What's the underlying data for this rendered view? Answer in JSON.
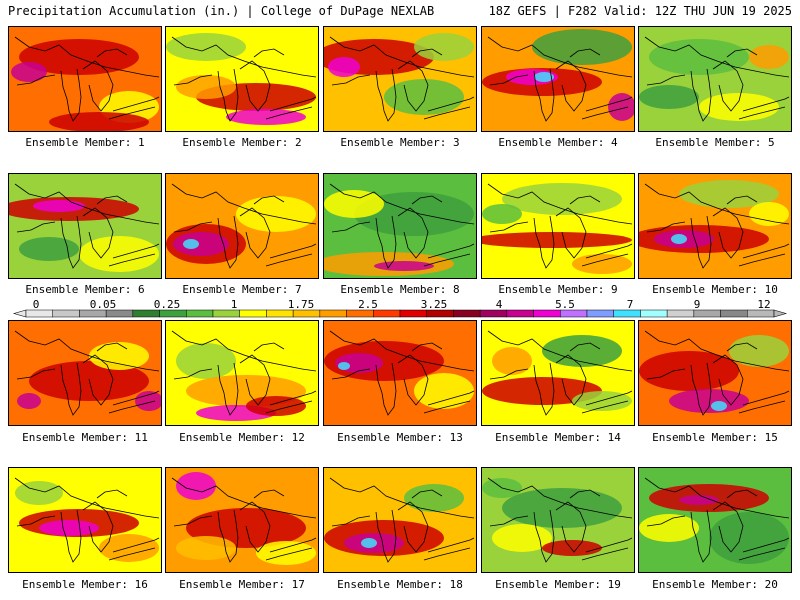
{
  "header": {
    "left": "Precipitation Accumulation (in.) | College of DuPage NEXLAB",
    "right": "18Z GEFS | F282 Valid: 12Z THU JUN 19 2025"
  },
  "legend": {
    "tick_labels": [
      "0",
      "0.05",
      "0.25",
      "1",
      "1.75",
      "2.5",
      "3.25",
      "4",
      "5.5",
      "7",
      "9",
      "12"
    ],
    "colors": [
      "#e8e8e8",
      "#c8c8c8",
      "#a8a8a8",
      "#8a8a8a",
      "#2f7f2f",
      "#3ea03e",
      "#5cbe3e",
      "#9ad23c",
      "#ffff00",
      "#ffe200",
      "#ffc000",
      "#ff9c00",
      "#ff6e00",
      "#ff3a00",
      "#e00000",
      "#b00000",
      "#8a0020",
      "#a00060",
      "#c80090",
      "#ee00d0",
      "#c070ff",
      "#7f9cff",
      "#40e0ff",
      "#a0ffff",
      "#d0d0d0",
      "#a8a8a8",
      "#888888",
      "#b8b8b8"
    ]
  },
  "panels": [
    {
      "caption": "Ensemble Member: 1",
      "bg": "#ff6e00",
      "blobs": [
        [
          "#cc0000",
          70,
          30,
          60,
          18
        ],
        [
          "#c80090",
          20,
          45,
          18,
          10
        ],
        [
          "#ffff00",
          120,
          80,
          30,
          16
        ],
        [
          "#cc0000",
          90,
          95,
          50,
          10
        ]
      ]
    },
    {
      "caption": "Ensemble Member: 2",
      "bg": "#ffff00",
      "blobs": [
        [
          "#9ad23c",
          40,
          20,
          40,
          14
        ],
        [
          "#cc0000",
          90,
          70,
          60,
          14
        ],
        [
          "#ee00d0",
          100,
          90,
          40,
          8
        ],
        [
          "#ff9c00",
          40,
          60,
          30,
          12
        ]
      ]
    },
    {
      "caption": "Ensemble Member: 3",
      "bg": "#ffc000",
      "blobs": [
        [
          "#cc0000",
          50,
          30,
          60,
          18
        ],
        [
          "#ee00d0",
          20,
          40,
          16,
          10
        ],
        [
          "#5cbe3e",
          100,
          70,
          40,
          18
        ],
        [
          "#9ad23c",
          120,
          20,
          30,
          14
        ]
      ]
    },
    {
      "caption": "Ensemble Member: 4",
      "bg": "#ff9c00",
      "blobs": [
        [
          "#3ea03e",
          100,
          20,
          50,
          18
        ],
        [
          "#cc0000",
          60,
          55,
          60,
          14
        ],
        [
          "#ee00d0",
          50,
          50,
          26,
          8
        ],
        [
          "#40e0ff",
          62,
          50,
          10,
          5
        ],
        [
          "#c80090",
          140,
          80,
          14,
          14
        ]
      ]
    },
    {
      "caption": "Ensemble Member: 5",
      "bg": "#9ad23c",
      "blobs": [
        [
          "#5cbe3e",
          60,
          30,
          50,
          18
        ],
        [
          "#ffff00",
          100,
          80,
          40,
          14
        ],
        [
          "#ff9c00",
          130,
          30,
          20,
          12
        ],
        [
          "#3ea03e",
          30,
          70,
          30,
          12
        ]
      ]
    },
    {
      "caption": "Ensemble Member: 6",
      "bg": "#9ad23c",
      "blobs": [
        [
          "#cc0000",
          60,
          35,
          70,
          12
        ],
        [
          "#ee00d0",
          50,
          32,
          26,
          6
        ],
        [
          "#ffff00",
          110,
          80,
          40,
          18
        ],
        [
          "#3ea03e",
          40,
          75,
          30,
          12
        ]
      ]
    },
    {
      "caption": "Ensemble Member: 7",
      "bg": "#ff9c00",
      "blobs": [
        [
          "#cc0000",
          40,
          70,
          40,
          20
        ],
        [
          "#c80090",
          35,
          70,
          28,
          12
        ],
        [
          "#40e0ff",
          25,
          70,
          8,
          5
        ],
        [
          "#ffff00",
          110,
          40,
          40,
          18
        ]
      ]
    },
    {
      "caption": "Ensemble Member: 8",
      "bg": "#5cbe3e",
      "blobs": [
        [
          "#3ea03e",
          90,
          40,
          60,
          22
        ],
        [
          "#ff9c00",
          60,
          90,
          70,
          12
        ],
        [
          "#ffff00",
          30,
          30,
          30,
          14
        ],
        [
          "#c80090",
          80,
          92,
          30,
          5
        ]
      ]
    },
    {
      "caption": "Ensemble Member: 9",
      "bg": "#ffff00",
      "blobs": [
        [
          "#9ad23c",
          80,
          25,
          60,
          16
        ],
        [
          "#cc0000",
          70,
          66,
          80,
          8
        ],
        [
          "#ff9c00",
          120,
          90,
          30,
          10
        ],
        [
          "#5cbe3e",
          20,
          40,
          20,
          10
        ]
      ]
    },
    {
      "caption": "Ensemble Member: 10",
      "bg": "#ff9c00",
      "blobs": [
        [
          "#cc0000",
          60,
          65,
          70,
          14
        ],
        [
          "#c80090",
          45,
          65,
          30,
          9
        ],
        [
          "#40e0ff",
          40,
          65,
          8,
          5
        ],
        [
          "#9ad23c",
          90,
          20,
          50,
          14
        ],
        [
          "#ffff00",
          130,
          40,
          20,
          12
        ]
      ]
    },
    {
      "caption": "Ensemble Member: 11",
      "bg": "#ff6e00",
      "blobs": [
        [
          "#cc0000",
          80,
          60,
          60,
          20
        ],
        [
          "#ffff00",
          110,
          35,
          30,
          14
        ],
        [
          "#c80090",
          140,
          80,
          14,
          10
        ],
        [
          "#c80090",
          20,
          80,
          12,
          8
        ]
      ]
    },
    {
      "caption": "Ensemble Member: 12",
      "bg": "#ffff00",
      "blobs": [
        [
          "#9ad23c",
          40,
          40,
          30,
          18
        ],
        [
          "#ff9c00",
          80,
          70,
          60,
          16
        ],
        [
          "#ee00d0",
          70,
          92,
          40,
          8
        ],
        [
          "#cc0000",
          110,
          85,
          30,
          10
        ]
      ]
    },
    {
      "caption": "Ensemble Member: 13",
      "bg": "#ff6e00",
      "blobs": [
        [
          "#cc0000",
          60,
          40,
          60,
          20
        ],
        [
          "#c80090",
          35,
          42,
          24,
          10
        ],
        [
          "#40e0ff",
          20,
          45,
          6,
          4
        ],
        [
          "#ffff00",
          120,
          70,
          30,
          18
        ]
      ]
    },
    {
      "caption": "Ensemble Member: 14",
      "bg": "#ffff00",
      "blobs": [
        [
          "#3ea03e",
          100,
          30,
          40,
          16
        ],
        [
          "#cc0000",
          60,
          70,
          60,
          14
        ],
        [
          "#ff9c00",
          30,
          40,
          20,
          14
        ],
        [
          "#9ad23c",
          120,
          80,
          30,
          10
        ]
      ]
    },
    {
      "caption": "Ensemble Member: 15",
      "bg": "#ff6e00",
      "blobs": [
        [
          "#cc0000",
          50,
          50,
          50,
          20
        ],
        [
          "#c80090",
          70,
          80,
          40,
          12
        ],
        [
          "#40e0ff",
          80,
          85,
          8,
          5
        ],
        [
          "#9ad23c",
          120,
          30,
          30,
          16
        ]
      ]
    },
    {
      "caption": "Ensemble Member: 16",
      "bg": "#ffff00",
      "blobs": [
        [
          "#cc0000",
          70,
          55,
          60,
          14
        ],
        [
          "#ee00d0",
          60,
          60,
          30,
          8
        ],
        [
          "#9ad23c",
          30,
          25,
          24,
          12
        ],
        [
          "#ff9c00",
          120,
          80,
          30,
          14
        ]
      ]
    },
    {
      "caption": "Ensemble Member: 17",
      "bg": "#ff9c00",
      "blobs": [
        [
          "#ee00d0",
          30,
          18,
          20,
          14
        ],
        [
          "#cc0000",
          80,
          60,
          60,
          20
        ],
        [
          "#ffff00",
          120,
          85,
          30,
          12
        ],
        [
          "#ffc000",
          40,
          80,
          30,
          12
        ]
      ]
    },
    {
      "caption": "Ensemble Member: 18",
      "bg": "#ffc000",
      "blobs": [
        [
          "#cc0000",
          60,
          70,
          60,
          18
        ],
        [
          "#c80090",
          50,
          75,
          30,
          10
        ],
        [
          "#40e0ff",
          45,
          75,
          8,
          5
        ],
        [
          "#5cbe3e",
          110,
          30,
          30,
          14
        ]
      ]
    },
    {
      "caption": "Ensemble Member: 19",
      "bg": "#9ad23c",
      "blobs": [
        [
          "#3ea03e",
          80,
          40,
          60,
          20
        ],
        [
          "#ffff00",
          40,
          70,
          30,
          14
        ],
        [
          "#cc0000",
          90,
          80,
          30,
          8
        ],
        [
          "#5cbe3e",
          20,
          20,
          20,
          10
        ]
      ]
    },
    {
      "caption": "Ensemble Member: 20",
      "bg": "#5cbe3e",
      "blobs": [
        [
          "#3ea03e",
          110,
          70,
          40,
          26
        ],
        [
          "#cc0000",
          70,
          30,
          60,
          14
        ],
        [
          "#ffff00",
          30,
          60,
          30,
          14
        ],
        [
          "#c80090",
          60,
          32,
          20,
          5
        ]
      ]
    }
  ]
}
